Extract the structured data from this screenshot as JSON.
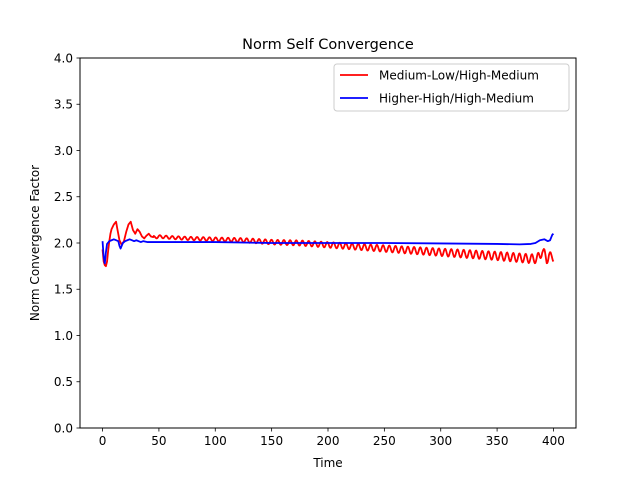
{
  "chart_data": {
    "type": "line",
    "title": "Norm Self Convergence",
    "xlabel": "Time",
    "ylabel": "Norm Convergence Factor",
    "xlim": [
      -20,
      420
    ],
    "ylim": [
      0.0,
      4.0
    ],
    "xticks": [
      0,
      50,
      100,
      150,
      200,
      250,
      300,
      350,
      400
    ],
    "yticks": [
      "0.0",
      "0.5",
      "1.0",
      "1.5",
      "2.0",
      "2.5",
      "3.0",
      "3.5",
      "4.0"
    ],
    "grid": false,
    "legend_position": "upper right",
    "series": [
      {
        "name": "Medium-Low/High-Medium",
        "color": "#ff0000",
        "x": [
          0,
          1,
          2,
          3,
          4,
          5,
          6,
          7,
          8,
          10,
          12,
          13,
          15,
          17,
          19,
          21,
          23,
          25,
          27,
          29,
          31,
          33,
          35,
          37,
          39,
          41,
          43,
          46,
          50,
          60,
          75,
          100,
          125,
          150,
          175,
          200,
          225,
          250,
          275,
          300,
          325,
          350,
          370,
          380,
          385,
          388,
          390,
          392,
          394,
          396,
          398,
          400
        ],
        "y": [
          1.93,
          1.8,
          1.76,
          1.75,
          1.8,
          1.92,
          2.02,
          2.1,
          2.15,
          2.2,
          2.23,
          2.16,
          2.03,
          1.98,
          2.02,
          2.12,
          2.2,
          2.23,
          2.14,
          2.1,
          2.15,
          2.12,
          2.07,
          2.05,
          2.08,
          2.1,
          2.07,
          2.06,
          2.07,
          2.06,
          2.05,
          2.04,
          2.03,
          2.01,
          2.0,
          1.98,
          1.96,
          1.94,
          1.92,
          1.9,
          1.88,
          1.86,
          1.84,
          1.83,
          1.83,
          1.86,
          1.92,
          1.88,
          1.82,
          1.87,
          1.84,
          1.85
        ],
        "oscillation_amplitude": 0.03
      },
      {
        "name": "Higher-High/High-Medium",
        "color": "#0000ff",
        "x": [
          0,
          1,
          2,
          3,
          4,
          6,
          8,
          10,
          12,
          14,
          15,
          16,
          17,
          18,
          20,
          22,
          24,
          26,
          28,
          30,
          32,
          34,
          36,
          40,
          45,
          50,
          100,
          150,
          200,
          250,
          300,
          350,
          370,
          380,
          384,
          388,
          392,
          395,
          397,
          398,
          399,
          400
        ],
        "y": [
          2.02,
          1.85,
          1.78,
          1.9,
          1.99,
          2.02,
          2.03,
          2.04,
          2.03,
          2.02,
          1.97,
          1.94,
          1.97,
          2.0,
          2.02,
          2.03,
          2.04,
          2.03,
          2.02,
          2.03,
          2.02,
          2.01,
          2.02,
          2.01,
          2.01,
          2.01,
          2.01,
          2.0,
          2.0,
          2.0,
          1.995,
          1.99,
          1.985,
          1.99,
          2.0,
          2.03,
          2.04,
          2.02,
          2.03,
          2.06,
          2.09,
          2.1
        ]
      }
    ]
  }
}
